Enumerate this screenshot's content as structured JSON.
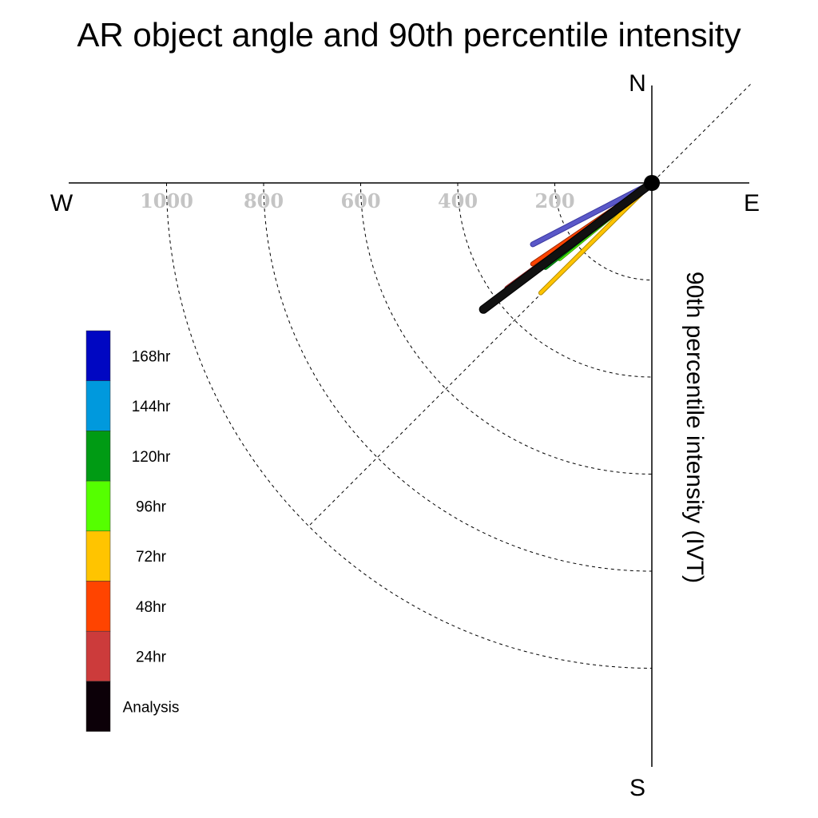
{
  "chart_data": {
    "type": "polar-vector",
    "title": "AR object angle and 90th percentile intensity",
    "radial_label": "90th percentile intensity (IVT)",
    "directions": {
      "north": "N",
      "south": "S",
      "east": "E",
      "west": "W"
    },
    "radial_ticks": [
      200,
      400,
      600,
      800,
      1000
    ],
    "radial_range": [
      0,
      1200
    ],
    "grid": true,
    "legend_position": "left",
    "legend": [
      {
        "label": "168hr",
        "color": "#0007c2"
      },
      {
        "label": "144hr",
        "color": "#0099dd"
      },
      {
        "label": "120hr",
        "color": "#009b14"
      },
      {
        "label": "96hr",
        "color": "#55ff00"
      },
      {
        "label": "72hr",
        "color": "#ffc400"
      },
      {
        "label": "48hr",
        "color": "#ff4400"
      },
      {
        "label": "24hr",
        "color": "#cc3b3b"
      },
      {
        "label": "Analysis",
        "color": "#0c0008"
      }
    ],
    "series": [
      {
        "name": "72hr",
        "color": "#ffc400",
        "angle_deg": 225.3,
        "intensity": 322,
        "outline": "#b08a00",
        "width": 4
      },
      {
        "name": "96hr",
        "color": "#55ff00",
        "angle_deg": 230.6,
        "intensity": 246,
        "outline": "#3a9a00",
        "width": 4
      },
      {
        "name": "120hr",
        "color": "#009b14",
        "angle_deg": 231.5,
        "intensity": 280,
        "outline": "#006b0e",
        "width": 4
      },
      {
        "name": "168hr",
        "color": "#5a58c8",
        "angle_deg": 242.7,
        "intensity": 276,
        "outline": "#3a38a0",
        "width": 5
      },
      {
        "name": "24hr",
        "color": "#cc3b3b",
        "angle_deg": 233.9,
        "intensity": 369,
        "outline": "#8a1f1f",
        "width": 5
      },
      {
        "name": "48hr",
        "color": "#ff4400",
        "angle_deg": 235.8,
        "intensity": 297,
        "outline": "#a02a00",
        "width": 4
      },
      {
        "name": "Analysis",
        "color": "#111111",
        "angle_deg": 233.1,
        "intensity": 434,
        "outline": "#000000",
        "width": 9
      }
    ]
  }
}
